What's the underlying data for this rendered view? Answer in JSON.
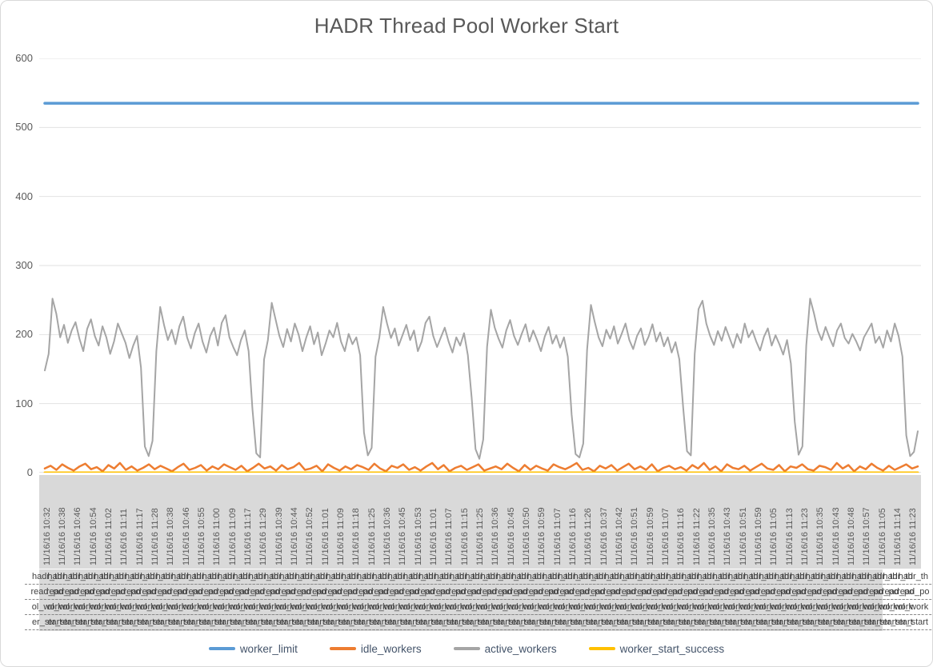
{
  "title": "HADR Thread Pool Worker Start",
  "colors": {
    "worker_limit": "#5B9BD5",
    "idle_workers": "#ED7D31",
    "active_workers": "#A5A5A5",
    "worker_start_success": "#FFC000",
    "gridline": "#e2e2e2",
    "axis_band": "#d9d9d9",
    "axis_text": "#595959",
    "legend_text": "#44546a"
  },
  "chart_data": {
    "type": "line",
    "title": "HADR Thread Pool Worker Start",
    "xlabel": "",
    "ylabel": "",
    "ylim": [
      0,
      600
    ],
    "y_ticks": [
      0,
      100,
      200,
      300,
      400,
      500,
      600
    ],
    "grid": true,
    "legend_position": "bottom",
    "x_tick_labels": [
      "11/16/16 10:32",
      "11/16/16 10:38",
      "11/16/16 10:46",
      "11/16/16 10:54",
      "11/16/16 11:02",
      "11/16/16 11:11",
      "11/16/16 11:17",
      "11/16/16 11:28",
      "11/16/16 10:38",
      "11/16/16 10:46",
      "11/16/16 10:55",
      "11/16/16 11:00",
      "11/16/16 11:09",
      "11/16/16 11:17",
      "11/16/16 11:29",
      "11/16/16 10:39",
      "11/16/16 10:44",
      "11/16/16 10:52",
      "11/16/16 11:01",
      "11/16/16 11:09",
      "11/16/16 11:18",
      "11/16/16 11:25",
      "11/16/16 10:36",
      "11/16/16 10:45",
      "11/16/16 10:53",
      "11/16/16 11:01",
      "11/16/16 11:07",
      "11/16/16 11:15",
      "11/16/16 11:25",
      "11/16/16 10:36",
      "11/16/16 10:45",
      "11/16/16 10:50",
      "11/16/16 10:59",
      "11/16/16 11:07",
      "11/16/16 11:16",
      "11/16/16 11:26",
      "11/16/16 10:37",
      "11/16/16 10:42",
      "11/16/16 10:51",
      "11/16/16 10:59",
      "11/16/16 11:07",
      "11/16/16 11:16",
      "11/16/16 11:22",
      "11/16/16 10:35",
      "11/16/16 10:43",
      "11/16/16 10:51",
      "11/16/16 10:59",
      "11/16/16 11:05",
      "11/16/16 11:13",
      "11/16/16 11:23",
      "11/16/16 10:35",
      "11/16/16 10:43",
      "11/16/16 10:48",
      "11/16/16 10:57",
      "11/16/16 11:05",
      "11/16/16 11:14",
      "11/16/16 11:23"
    ],
    "category_group_label_wrapped_lines": [
      "hadr_th",
      "read_po",
      "ol_work",
      "er_start"
    ],
    "series": [
      {
        "name": "worker_limit",
        "color": "#5B9BD5",
        "kind": "constant",
        "value": 535
      },
      {
        "name": "idle_workers",
        "color": "#ED7D31",
        "kind": "points",
        "values": [
          6,
          10,
          4,
          12,
          7,
          3,
          9,
          13,
          5,
          8,
          2,
          11,
          6,
          14,
          4,
          9,
          3,
          7,
          12,
          5,
          10,
          6,
          2,
          8,
          13,
          4,
          7,
          11,
          3,
          9,
          5,
          12,
          8,
          4,
          10,
          2,
          7,
          13,
          6,
          9,
          3,
          11,
          5,
          8,
          14,
          4,
          6,
          10,
          2,
          12,
          7,
          3,
          9,
          5,
          11,
          8,
          4,
          13,
          6,
          2,
          10,
          7,
          12,
          4,
          8,
          3,
          9,
          14,
          5,
          11,
          2,
          7,
          10,
          4,
          8,
          12,
          3,
          6,
          9,
          5,
          13,
          7,
          2,
          11,
          4,
          10,
          6,
          3,
          12,
          8,
          5,
          9,
          14,
          4,
          7,
          2,
          10,
          6,
          11,
          3,
          8,
          13,
          5,
          9,
          4,
          12,
          2,
          7,
          10,
          5,
          8,
          3,
          11,
          6,
          14,
          4,
          9,
          2,
          12,
          7,
          5,
          10,
          3,
          8,
          13,
          6,
          4,
          11,
          2,
          9,
          7,
          12,
          5,
          3,
          10,
          8,
          4,
          14,
          6,
          11,
          2,
          9,
          5,
          13,
          7,
          3,
          10,
          4,
          8,
          12,
          6,
          9
        ]
      },
      {
        "name": "active_workers",
        "color": "#A5A5A5",
        "kind": "points",
        "values": [
          148,
          172,
          252,
          230,
          196,
          214,
          188,
          206,
          218,
          194,
          176,
          208,
          222,
          198,
          184,
          212,
          196,
          172,
          190,
          216,
          202,
          188,
          166,
          184,
          198,
          152,
          38,
          24,
          46,
          176,
          240,
          214,
          192,
          207,
          186,
          212,
          226,
          196,
          180,
          202,
          216,
          190,
          174,
          198,
          210,
          184,
          217,
          228,
          196,
          182,
          170,
          192,
          206,
          176,
          92,
          28,
          22,
          164,
          192,
          246,
          222,
          198,
          182,
          208,
          190,
          216,
          200,
          176,
          196,
          212,
          186,
          203,
          170,
          187,
          206,
          196,
          217,
          190,
          176,
          201,
          186,
          196,
          170,
          58,
          25,
          36,
          168,
          196,
          240,
          216,
          195,
          209,
          184,
          199,
          214,
          192,
          206,
          176,
          190,
          217,
          226,
          198,
          182,
          196,
          210,
          190,
          174,
          196,
          184,
          202,
          170,
          108,
          34,
          20,
          48,
          182,
          236,
          210,
          194,
          181,
          206,
          221,
          198,
          185,
          201,
          215,
          190,
          206,
          192,
          176,
          197,
          211,
          187,
          199,
          181,
          196,
          168,
          84,
          27,
          22,
          42,
          178,
          243,
          218,
          196,
          183,
          207,
          194,
          212,
          187,
          201,
          216,
          192,
          179,
          198,
          209,
          185,
          197,
          215,
          190,
          203,
          183,
          196,
          174,
          189,
          164,
          94,
          31,
          25,
          172,
          237,
          249,
          216,
          198,
          185,
          205,
          191,
          211,
          196,
          181,
          201,
          188,
          216,
          196,
          206,
          190,
          177,
          197,
          209,
          184,
          199,
          186,
          171,
          192,
          158,
          74,
          26,
          38,
          184,
          252,
          231,
          206,
          192,
          211,
          196,
          183,
          206,
          216,
          195,
          187,
          201,
          190,
          177,
          196,
          206,
          216,
          188,
          197,
          181,
          206,
          190,
          216,
          198,
          168,
          54,
          24,
          30,
          60
        ]
      },
      {
        "name": "worker_start_success",
        "color": "#FFC000",
        "kind": "constant",
        "value": 0
      }
    ]
  }
}
